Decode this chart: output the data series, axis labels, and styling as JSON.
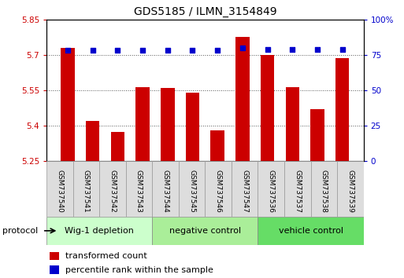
{
  "title": "GDS5185 / ILMN_3154849",
  "samples": [
    "GSM737540",
    "GSM737541",
    "GSM737542",
    "GSM737543",
    "GSM737544",
    "GSM737545",
    "GSM737546",
    "GSM737547",
    "GSM737536",
    "GSM737537",
    "GSM737538",
    "GSM737539"
  ],
  "bar_values": [
    5.73,
    5.42,
    5.375,
    5.565,
    5.56,
    5.54,
    5.382,
    5.775,
    5.7,
    5.565,
    5.47,
    5.685
  ],
  "percentile_values": [
    78,
    78,
    78,
    78,
    78,
    78,
    78,
    80,
    79,
    79,
    79,
    79
  ],
  "ylim_left": [
    5.25,
    5.85
  ],
  "ylim_right": [
    0,
    100
  ],
  "yticks_left": [
    5.25,
    5.4,
    5.55,
    5.7,
    5.85
  ],
  "yticks_right": [
    0,
    25,
    50,
    75,
    100
  ],
  "bar_color": "#cc0000",
  "dot_color": "#0000cc",
  "bar_width": 0.55,
  "groups": [
    {
      "label": "Wig-1 depletion",
      "indices": [
        0,
        1,
        2,
        3
      ],
      "color": "#ccffcc"
    },
    {
      "label": "negative control",
      "indices": [
        4,
        5,
        6,
        7
      ],
      "color": "#aaee99"
    },
    {
      "label": "vehicle control",
      "indices": [
        8,
        9,
        10,
        11
      ],
      "color": "#66dd66"
    }
  ],
  "protocol_label": "protocol",
  "legend_bar_label": "transformed count",
  "legend_dot_label": "percentile rank within the sample",
  "title_fontsize": 10,
  "tick_fontsize": 7.5,
  "sample_fontsize": 6.5,
  "label_fontsize": 8,
  "group_label_fontsize": 8,
  "background_color": "#ffffff",
  "plot_bg_color": "#ffffff",
  "grid_color": "#555555",
  "sample_box_color": "#dddddd",
  "sample_box_edge": "#999999"
}
